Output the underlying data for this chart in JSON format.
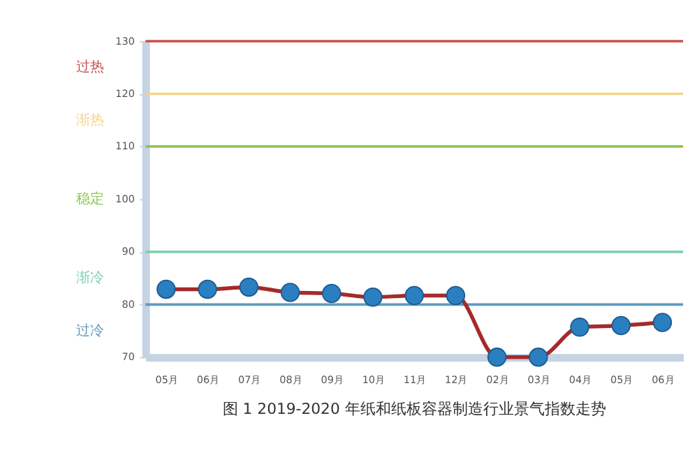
{
  "chart_data": {
    "type": "line",
    "title": "图 1    2019-2020 年纸和纸板容器制造行业景气指数走势",
    "categories": [
      "05月",
      "06月",
      "07月",
      "08月",
      "09月",
      "10月",
      "11月",
      "12月",
      "02月",
      "03月",
      "04月",
      "05月",
      "06月"
    ],
    "series": [
      {
        "color": "#a52a2a",
        "values": [
          82.9,
          82.9,
          83.3,
          82.3,
          82.1,
          81.4,
          81.7,
          81.7,
          70,
          70,
          75.7,
          76,
          76.6
        ]
      }
    ],
    "ylim": [
      70,
      130
    ],
    "yticks": [
      70,
      80,
      90,
      100,
      110,
      120,
      130
    ],
    "marker": "circle",
    "grid": false,
    "ref_lines": [
      {
        "axis": "y",
        "value": 130,
        "color": "#c9504d"
      },
      {
        "axis": "y",
        "value": 120,
        "color": "#f2d58a"
      },
      {
        "axis": "y",
        "value": 110,
        "color": "#8cc850"
      },
      {
        "axis": "y",
        "value": 90,
        "color": "#80d0b0"
      },
      {
        "axis": "y",
        "value": 80,
        "color": "#5b9cc0"
      }
    ],
    "annotations": [
      "过热",
      "渐热",
      "稳定",
      "渐冷",
      "过冷"
    ]
  }
}
